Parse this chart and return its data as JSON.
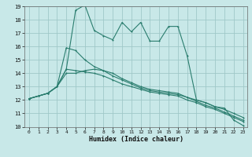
{
  "bg_color": "#c8e8e8",
  "grid_color": "#a0c8c8",
  "line_color": "#2a7d6e",
  "xlabel": "Humidex (Indice chaleur)",
  "xlim": [
    -0.5,
    23.5
  ],
  "ylim": [
    10,
    19
  ],
  "xticks": [
    0,
    1,
    2,
    3,
    4,
    5,
    6,
    7,
    8,
    9,
    10,
    11,
    12,
    13,
    14,
    15,
    16,
    17,
    18,
    19,
    20,
    21,
    22,
    23
  ],
  "yticks": [
    10,
    11,
    12,
    13,
    14,
    15,
    16,
    17,
    18,
    19
  ],
  "series": [
    [
      12.1,
      12.3,
      12.5,
      13.0,
      14.3,
      18.7,
      19.1,
      17.2,
      16.8,
      16.5,
      17.8,
      17.1,
      17.8,
      16.4,
      16.4,
      17.5,
      17.5,
      15.3,
      12.0,
      11.8,
      11.5,
      11.4,
      10.5,
      10.1
    ],
    [
      12.1,
      12.3,
      12.5,
      13.0,
      15.9,
      15.7,
      15.0,
      14.5,
      14.2,
      13.8,
      13.5,
      13.2,
      12.9,
      12.7,
      12.6,
      12.5,
      12.4,
      12.2,
      12.0,
      11.8,
      11.5,
      11.3,
      11.0,
      10.7
    ],
    [
      12.1,
      12.3,
      12.5,
      13.0,
      14.0,
      14.0,
      14.2,
      14.3,
      14.2,
      14.0,
      13.6,
      13.3,
      13.0,
      12.8,
      12.7,
      12.6,
      12.5,
      12.2,
      11.9,
      11.6,
      11.4,
      11.1,
      10.8,
      10.5
    ],
    [
      12.1,
      12.3,
      12.5,
      13.0,
      14.3,
      14.2,
      14.1,
      14.0,
      13.8,
      13.5,
      13.2,
      13.0,
      12.8,
      12.6,
      12.5,
      12.4,
      12.3,
      12.0,
      11.8,
      11.5,
      11.3,
      11.0,
      10.7,
      10.4
    ]
  ]
}
